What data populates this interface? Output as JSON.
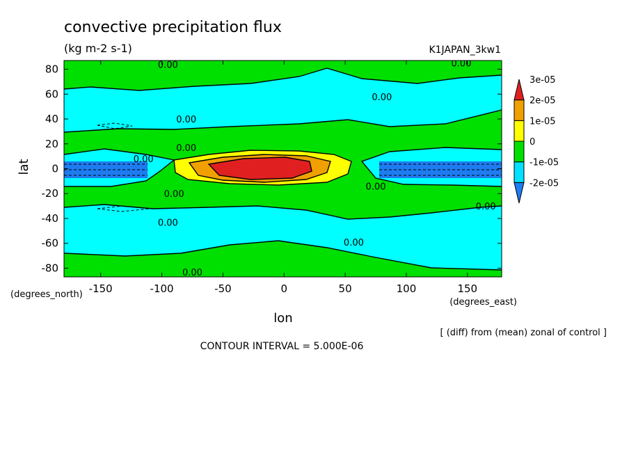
{
  "chart_data": {
    "type": "heatmap",
    "title": "convective precipitation flux",
    "subtitle": "(kg m-2 s-1)",
    "dataset_label": "K1JAPAN_3kw1",
    "xlabel": "lon",
    "ylabel": "lat",
    "x_units_label": "(degrees_east)",
    "y_units_label": "(degrees_north)",
    "xlim": [
      -180,
      178
    ],
    "ylim": [
      -87,
      87
    ],
    "x_ticks": [
      -150,
      -100,
      -50,
      0,
      50,
      100,
      150
    ],
    "y_ticks": [
      -80,
      -60,
      -40,
      -20,
      0,
      20,
      40,
      60,
      80
    ],
    "x_tick_labels": [
      "-150",
      "-100",
      "-50",
      "0",
      "50",
      "100",
      "150"
    ],
    "y_tick_labels": [
      "-80",
      "-60",
      "-40",
      "-20",
      "0",
      "20",
      "40",
      "60",
      "80"
    ],
    "grid": false,
    "legend": {
      "placement": "right",
      "levels": [
        "-2e-05",
        "-1e-05",
        "0",
        "1e-05",
        "2e-05",
        "3e-05"
      ],
      "colors": [
        "#1e7cf0",
        "#00e0ff",
        "#00e000",
        "#ffff00",
        "#f0a000",
        "#e02020"
      ]
    },
    "contour_labels": [
      {
        "text": "0.00",
        "lon": -95,
        "lat": 84
      },
      {
        "text": "0.00",
        "lon": 145,
        "lat": 85
      },
      {
        "text": "0.00",
        "lon": 80,
        "lat": 58
      },
      {
        "text": "0.00",
        "lon": -80,
        "lat": 40
      },
      {
        "text": "0.00",
        "lon": -80,
        "lat": 17
      },
      {
        "text": "0.00",
        "lon": -115,
        "lat": 8
      },
      {
        "text": "0.00",
        "lon": 75,
        "lat": -14
      },
      {
        "text": "0.00",
        "lon": -90,
        "lat": -20
      },
      {
        "text": "0.00",
        "lon": 165,
        "lat": -30
      },
      {
        "text": "0.00",
        "lon": -95,
        "lat": -43
      },
      {
        "text": "0.00",
        "lon": 57,
        "lat": -59
      },
      {
        "text": "0.00",
        "lon": -75,
        "lat": -83
      }
    ],
    "annotation_main": "CONTOUR INTERVAL = 5.000E-06",
    "annotation_note": "[ (diff) from (mean) zonal of control ]"
  }
}
